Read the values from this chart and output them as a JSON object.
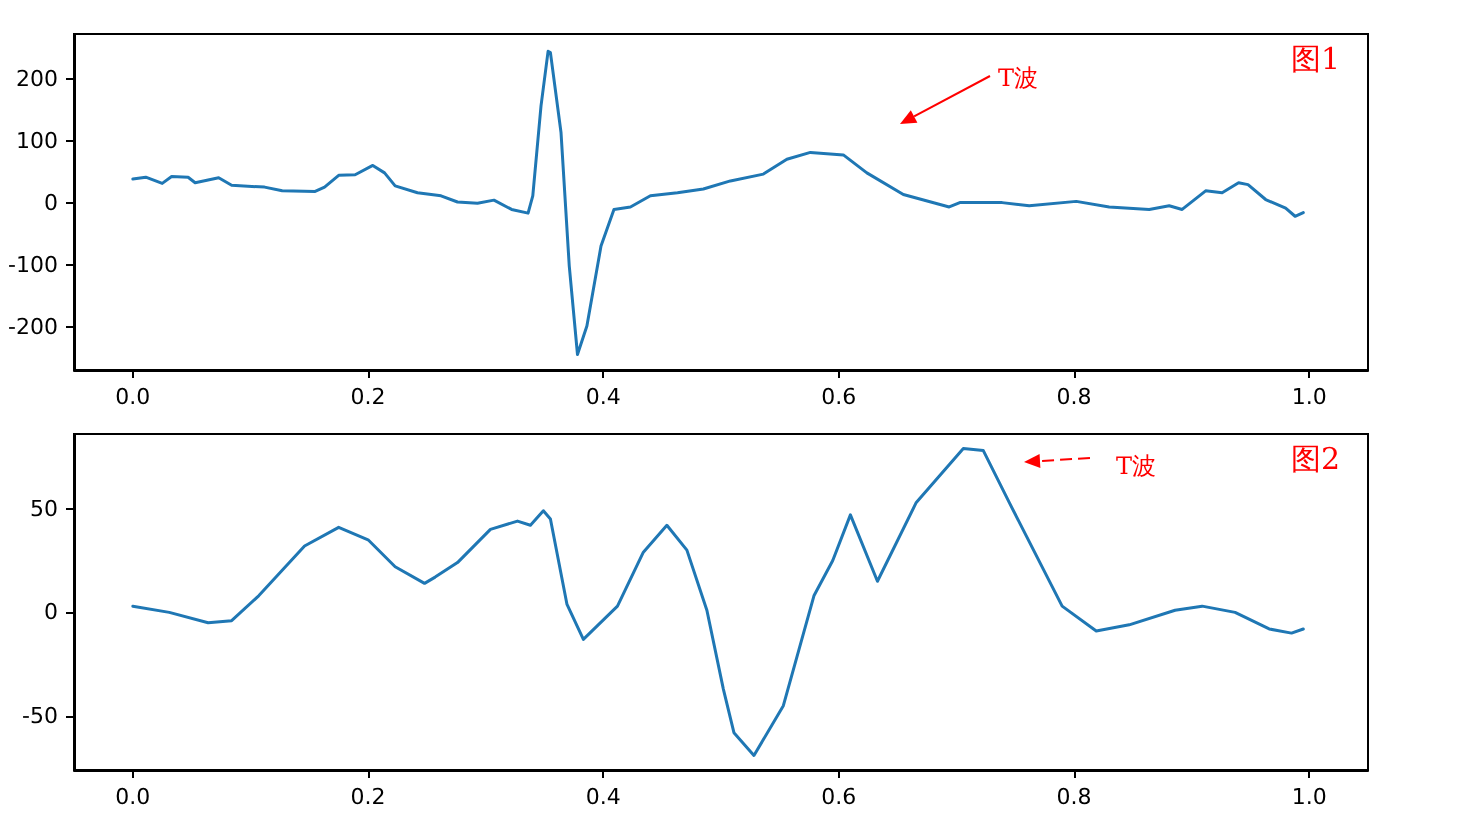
{
  "chart_data": [
    {
      "type": "line",
      "xlim": [
        -0.05,
        1.05
      ],
      "xticks": [
        {
          "value": 0,
          "label": "0.0"
        },
        {
          "value": 0.2,
          "label": "0.2"
        },
        {
          "value": 0.4,
          "label": "0.4"
        },
        {
          "value": 0.6,
          "label": "0.6"
        },
        {
          "value": 0.8,
          "label": "0.8"
        },
        {
          "value": 1,
          "label": "1.0"
        }
      ],
      "ylim": [
        -270,
        272
      ],
      "yticks": [
        -200,
        -100,
        0,
        100,
        200
      ],
      "grid": false,
      "x": [
        0,
        0.011,
        0.025,
        0.033,
        0.047,
        0.053,
        0.073,
        0.084,
        0.112,
        0.127,
        0.155,
        0.163,
        0.175,
        0.189,
        0.204,
        0.214,
        0.223,
        0.242,
        0.262,
        0.276,
        0.293,
        0.307,
        0.322,
        0.336,
        0.34,
        0.347,
        0.353,
        0.355,
        0.364,
        0.371,
        0.378,
        0.386,
        0.398,
        0.409,
        0.423,
        0.44,
        0.463,
        0.485,
        0.508,
        0.536,
        0.556,
        0.576,
        0.604,
        0.624,
        0.655,
        0.694,
        0.703,
        0.739,
        0.762,
        0.802,
        0.83,
        0.864,
        0.881,
        0.892,
        0.912,
        0.926,
        0.94,
        0.948,
        0.963,
        0.98,
        0.988,
        0.995
      ],
      "series": [
        {
          "color": "#1f77b4",
          "values": [
            38,
            41,
            31,
            42,
            41,
            32,
            40,
            28,
            25,
            19,
            18,
            25,
            44,
            45,
            60,
            48,
            27,
            16,
            11,
            1,
            -1,
            4,
            -11,
            -17,
            11,
            156,
            244,
            242,
            113,
            -102,
            -245,
            -199,
            -70,
            -11,
            -7,
            11,
            16,
            22,
            35,
            46,
            70,
            81,
            77,
            48,
            13,
            -7,
            0,
            0,
            -5,
            2,
            -7,
            -11,
            -5,
            -11,
            19,
            16,
            32,
            29,
            5,
            -9,
            -22,
            -16
          ]
        }
      ],
      "annotations": [
        "T波",
        "图1"
      ]
    },
    {
      "type": "line",
      "xlim": [
        -0.05,
        1.05
      ],
      "xticks": [
        {
          "value": 0,
          "label": "0.0"
        },
        {
          "value": 0.2,
          "label": "0.2"
        },
        {
          "value": 0.4,
          "label": "0.4"
        },
        {
          "value": 0.6,
          "label": "0.6"
        },
        {
          "value": 0.8,
          "label": "0.8"
        },
        {
          "value": 1,
          "label": "1.0"
        }
      ],
      "ylim": [
        -76,
        86
      ],
      "yticks": [
        -50,
        0,
        50
      ],
      "grid": false,
      "x": [
        0,
        0.031,
        0.064,
        0.084,
        0.107,
        0.146,
        0.175,
        0.2,
        0.223,
        0.248,
        0.257,
        0.276,
        0.304,
        0.327,
        0.338,
        0.349,
        0.355,
        0.369,
        0.383,
        0.412,
        0.434,
        0.454,
        0.471,
        0.488,
        0.502,
        0.511,
        0.528,
        0.553,
        0.579,
        0.595,
        0.61,
        0.633,
        0.666,
        0.706,
        0.723,
        0.745,
        0.79,
        0.819,
        0.847,
        0.886,
        0.909,
        0.937,
        0.966,
        0.985,
        0.995
      ],
      "series": [
        {
          "color": "#1f77b4",
          "values": [
            3,
            0,
            -5,
            -4,
            8,
            32,
            41,
            35,
            22,
            14,
            17,
            24,
            40,
            44,
            42,
            49,
            45,
            4,
            -13,
            3,
            29,
            42,
            30,
            1,
            -37,
            -58,
            -69,
            -45,
            8,
            25,
            47,
            15,
            53,
            79,
            78,
            53,
            3,
            -9,
            -6,
            1,
            3,
            0,
            -8,
            -10,
            -8
          ]
        }
      ],
      "annotations": [
        "T波",
        "图2"
      ]
    }
  ]
}
